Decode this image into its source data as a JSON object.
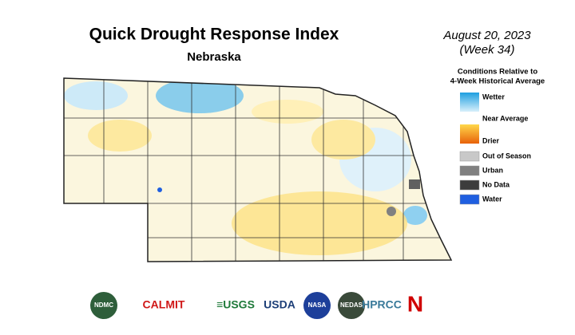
{
  "header": {
    "title": "Quick Drought Response Index",
    "subtitle": "Nebraska",
    "date": "August 20, 2023",
    "week": "(Week 34)"
  },
  "legend": {
    "title": [
      "Conditions Relative to",
      "4-Week Historical Average"
    ],
    "scale": [
      {
        "label": "Wetter",
        "color": "#1e9fe0"
      },
      {
        "label": "Near Average",
        "color": "#ffffff"
      },
      {
        "label": "Drier",
        "color": "#e8620a"
      }
    ],
    "categories": [
      {
        "label": "Out of Season",
        "color": "#c8c8c8"
      },
      {
        "label": "Urban",
        "color": "#808080"
      },
      {
        "label": "No Data",
        "color": "#3c3c3c"
      },
      {
        "label": "Water",
        "color": "#1f5fe0"
      }
    ]
  },
  "logos": [
    {
      "label": "NDMC",
      "color": "#2e5e3a"
    },
    {
      "label": "CALMIT",
      "color": "#d01818"
    },
    {
      "label": "≡USGS",
      "color": "#1f7a3a"
    },
    {
      "label": "USDA",
      "color": "#1d3f78"
    },
    {
      "label": "NASA",
      "color": "#1d3f9a"
    },
    {
      "label": "NEDAS",
      "color": "#3a4a3a"
    },
    {
      "label": "HPRCC",
      "color": "#3a7a9a"
    },
    {
      "label": "N",
      "color": "#d00000"
    }
  ]
}
